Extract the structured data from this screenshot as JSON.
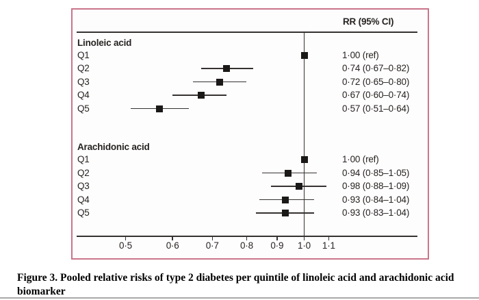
{
  "figure": {
    "caption_lines": [
      "Figure 3. Pooled relative risks of type 2 diabetes per quintile of linoleic acid and arachidonic acid",
      "biomarker"
    ]
  },
  "chart_data": {
    "type": "forest",
    "column_header": "RR (95% CI)",
    "x_axis": {
      "scale": "log",
      "ticks": [
        0.5,
        0.6,
        0.7,
        0.8,
        0.9,
        1.0,
        1.1
      ],
      "tick_labels": [
        "0·5",
        "0·6",
        "0·7",
        "0·8",
        "0·9",
        "1·0",
        "1·1"
      ],
      "reference_line": 1.0
    },
    "groups": [
      {
        "label": "Linoleic acid",
        "rows": [
          {
            "quintile": "Q1",
            "rr": 1.0,
            "ci_low": null,
            "ci_high": null,
            "display": "1·00 (ref)"
          },
          {
            "quintile": "Q2",
            "rr": 0.74,
            "ci_low": 0.67,
            "ci_high": 0.82,
            "display": "0·74 (0·67–0·82)"
          },
          {
            "quintile": "Q3",
            "rr": 0.72,
            "ci_low": 0.65,
            "ci_high": 0.8,
            "display": "0·72 (0·65–0·80)"
          },
          {
            "quintile": "Q4",
            "rr": 0.67,
            "ci_low": 0.6,
            "ci_high": 0.74,
            "display": "0·67 (0·60–0·74)"
          },
          {
            "quintile": "Q5",
            "rr": 0.57,
            "ci_low": 0.51,
            "ci_high": 0.64,
            "display": "0·57 (0·51–0·64)"
          }
        ]
      },
      {
        "label": "Arachidonic acid",
        "rows": [
          {
            "quintile": "Q1",
            "rr": 1.0,
            "ci_low": null,
            "ci_high": null,
            "display": "1·00 (ref)"
          },
          {
            "quintile": "Q2",
            "rr": 0.94,
            "ci_low": 0.85,
            "ci_high": 1.05,
            "display": "0·94 (0·85–1·05)"
          },
          {
            "quintile": "Q3",
            "rr": 0.98,
            "ci_low": 0.88,
            "ci_high": 1.09,
            "display": "0·98 (0·88–1·09)"
          },
          {
            "quintile": "Q4",
            "rr": 0.93,
            "ci_low": 0.84,
            "ci_high": 1.04,
            "display": "0·93 (0·84–1·04)"
          },
          {
            "quintile": "Q5",
            "rr": 0.93,
            "ci_low": 0.83,
            "ci_high": 1.04,
            "display": "0·93 (0·83–1·04)"
          }
        ]
      }
    ]
  },
  "colors": {
    "panel_border": "#c9758a",
    "plot_text": "#262321",
    "plot_lines": "#343130",
    "marker": "#1b1918",
    "panel_background": "#fefdfd",
    "caption_text": "#000000",
    "bottom_divider": "#a8a8a8"
  }
}
